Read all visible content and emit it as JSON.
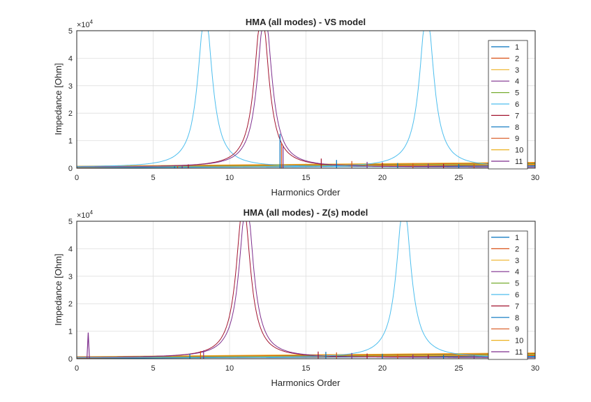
{
  "chart_data": [
    {
      "type": "line",
      "title": "HMA (all modes) - VS model",
      "xlabel": "Harmonics Order",
      "ylabel": "Impedance [Ohm]",
      "xlim": [
        0,
        30
      ],
      "ylim": [
        0,
        50000
      ],
      "y_multiplier": "×10",
      "y_exponent": "4",
      "x_ticks": [
        "0",
        "5",
        "10",
        "15",
        "20",
        "25",
        "30"
      ],
      "y_ticks": [
        "0",
        "1",
        "2",
        "3",
        "4",
        "5"
      ],
      "grid": true,
      "legend_position": "top-right",
      "legend": [
        "1",
        "2",
        "3",
        "4",
        "5",
        "6",
        "7",
        "8",
        "9",
        "10",
        "11"
      ],
      "colors": [
        "#0072BD",
        "#D95319",
        "#EDB120",
        "#7E2F8E",
        "#77AC30",
        "#4DBEEE",
        "#A2142F",
        "#0072BD",
        "#D95319",
        "#EDB120",
        "#7E2F8E"
      ],
      "resonances": [
        {
          "series": "6",
          "peak_x": 8.4,
          "peak_y": 50000
        },
        {
          "series": "7",
          "peak_x": 12.1,
          "peak_y": 50000
        },
        {
          "series": "11",
          "peak_x": 12.3,
          "peak_y": 50000
        },
        {
          "series": "6",
          "peak_x": 22.9,
          "peak_y": 50000
        }
      ],
      "spikes": [
        {
          "x": 6.4,
          "y": 700
        },
        {
          "x": 6.6,
          "y": 900
        },
        {
          "x": 6.9,
          "y": 1100
        },
        {
          "x": 7.3,
          "y": 1400
        },
        {
          "x": 13.3,
          "y": 12500
        },
        {
          "x": 13.4,
          "y": 9000
        },
        {
          "x": 13.5,
          "y": 8000
        },
        {
          "x": 16.0,
          "y": 3500
        },
        {
          "x": 17.0,
          "y": 3000
        },
        {
          "x": 18.0,
          "y": 2600
        },
        {
          "x": 19.0,
          "y": 2300
        },
        {
          "x": 20.0,
          "y": 2100
        },
        {
          "x": 21.0,
          "y": 1900
        },
        {
          "x": 22.0,
          "y": 1800
        },
        {
          "x": 23.0,
          "y": 1700
        },
        {
          "x": 24.0,
          "y": 1600
        },
        {
          "x": 25.0,
          "y": 1500
        },
        {
          "x": 26.0,
          "y": 1400
        },
        {
          "x": 27.0,
          "y": 1300
        },
        {
          "x": 28.0,
          "y": 1200
        },
        {
          "x": 29.0,
          "y": 1150
        }
      ]
    },
    {
      "type": "line",
      "title": "HMA (all modes) - Z(s) model",
      "xlabel": "Harmonics Order",
      "ylabel": "Impedance [Ohm]",
      "xlim": [
        0,
        30
      ],
      "ylim": [
        0,
        50000
      ],
      "y_multiplier": "×10",
      "y_exponent": "4",
      "x_ticks": [
        "0",
        "5",
        "10",
        "15",
        "20",
        "25",
        "30"
      ],
      "y_ticks": [
        "0",
        "1",
        "2",
        "3",
        "4",
        "5"
      ],
      "grid": true,
      "legend_position": "top-right",
      "legend": [
        "1",
        "2",
        "3",
        "4",
        "5",
        "6",
        "7",
        "8",
        "9",
        "10",
        "11"
      ],
      "colors": [
        "#0072BD",
        "#D95319",
        "#EDB120",
        "#7E2F8E",
        "#77AC30",
        "#4DBEEE",
        "#A2142F",
        "#0072BD",
        "#D95319",
        "#EDB120",
        "#7E2F8E"
      ],
      "resonances": [
        {
          "series": "7",
          "peak_x": 10.9,
          "peak_y": 49000
        },
        {
          "series": "11",
          "peak_x": 11.1,
          "peak_y": 50000
        },
        {
          "series": "6",
          "peak_x": 21.4,
          "peak_y": 50000
        }
      ],
      "small_peak": {
        "series": "11",
        "x": 0.75,
        "y": 9500
      },
      "spikes": [
        {
          "x": 7.4,
          "y": 1800
        },
        {
          "x": 8.1,
          "y": 2800
        },
        {
          "x": 8.3,
          "y": 3000
        },
        {
          "x": 15.8,
          "y": 2600
        },
        {
          "x": 16.3,
          "y": 2500
        },
        {
          "x": 17.0,
          "y": 2300
        },
        {
          "x": 18.0,
          "y": 2100
        },
        {
          "x": 19.0,
          "y": 1900
        },
        {
          "x": 20.0,
          "y": 1800
        },
        {
          "x": 21.0,
          "y": 1700
        },
        {
          "x": 22.0,
          "y": 1600
        },
        {
          "x": 23.0,
          "y": 1500
        },
        {
          "x": 24.0,
          "y": 1400
        },
        {
          "x": 25.0,
          "y": 1300
        },
        {
          "x": 26.0,
          "y": 1200
        },
        {
          "x": 27.0,
          "y": 1150
        },
        {
          "x": 28.0,
          "y": 1100
        }
      ]
    }
  ]
}
